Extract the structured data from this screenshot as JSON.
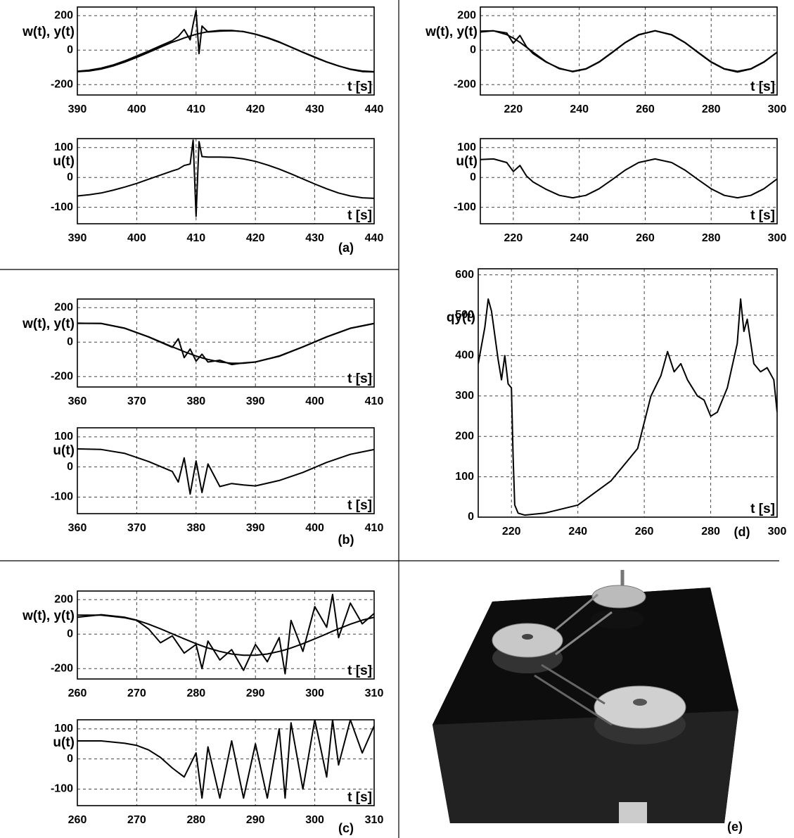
{
  "chart_data": [
    {
      "type": "line",
      "ylabel": "w(t), y(t)",
      "xlabel": "t [s]",
      "grid": true,
      "x": [
        390,
        392,
        394,
        396,
        398,
        400,
        402,
        404,
        406,
        407,
        408,
        409,
        409.5,
        410,
        410.5,
        411,
        412,
        414,
        416,
        418,
        420,
        422,
        424,
        426,
        428,
        430,
        432,
        434,
        436,
        438,
        440
      ],
      "series": [
        {
          "color": "#000000",
          "values": [
            -125,
            -121,
            -110,
            -92,
            -69,
            -42,
            -13,
            17,
            46,
            58,
            71,
            82,
            87,
            92,
            96,
            100,
            107,
            114,
            114,
            107,
            92,
            71,
            46,
            17,
            -13,
            -42,
            -69,
            -92,
            -110,
            -121,
            -125
          ]
        },
        {
          "color": "#000000",
          "values": [
            -122,
            -116,
            -104,
            -86,
            -62,
            -34,
            -5,
            25,
            55,
            80,
            120,
            60,
            150,
            230,
            -20,
            140,
            105,
            110,
            112,
            108,
            93,
            73,
            48,
            18,
            -12,
            -40,
            -68,
            -91,
            -112,
            -124,
            -126
          ]
        }
      ],
      "xlim": [
        390,
        440
      ],
      "xticks": [
        390,
        400,
        410,
        420,
        430,
        440
      ],
      "ylim": [
        -260,
        250
      ],
      "yticks": [
        -200,
        0,
        200
      ]
    },
    {
      "type": "line",
      "ylabel": "u(t)",
      "xlabel": "t [s]",
      "grid": true,
      "panel_label": "(a)",
      "x": [
        390,
        392,
        394,
        396,
        398,
        400,
        402,
        404,
        406,
        407,
        408,
        409,
        409.5,
        410,
        410.5,
        411,
        412,
        414,
        416,
        418,
        420,
        422,
        424,
        426,
        428,
        430,
        432,
        434,
        436,
        438,
        440
      ],
      "series": [
        {
          "color": "#000000",
          "values": [
            -62,
            -58,
            -52,
            -43,
            -32,
            -20,
            -6,
            8,
            22,
            28,
            40,
            45,
            125,
            -130,
            120,
            70,
            68,
            68,
            67,
            62,
            54,
            42,
            28,
            12,
            -5,
            -22,
            -38,
            -52,
            -62,
            -68,
            -70
          ]
        }
      ],
      "xlim": [
        390,
        440
      ],
      "xticks": [
        390,
        400,
        410,
        420,
        430,
        440
      ],
      "ylim": [
        -155,
        130
      ],
      "yticks": [
        -100,
        0,
        100
      ]
    },
    {
      "type": "line",
      "ylabel": "w(t), y(t)",
      "xlabel": "t [s]",
      "grid": true,
      "x": [
        210,
        214,
        218,
        220,
        222,
        224,
        226,
        230,
        234,
        238,
        242,
        246,
        250,
        254,
        258,
        263,
        268,
        272,
        276,
        280,
        284,
        288,
        292,
        296,
        300
      ],
      "series": [
        {
          "color": "#000000",
          "values": [
            105,
            112,
            90,
            70,
            45,
            17,
            -12,
            -68,
            -108,
            -123,
            -108,
            -68,
            -12,
            45,
            90,
            113,
            90,
            45,
            -12,
            -68,
            -108,
            -123,
            -108,
            -68,
            -12
          ]
        },
        {
          "color": "#000000",
          "values": [
            110,
            112,
            100,
            40,
            85,
            20,
            -20,
            -70,
            -105,
            -125,
            -110,
            -70,
            -14,
            44,
            88,
            112,
            88,
            44,
            -14,
            -70,
            -110,
            -127,
            -110,
            -70,
            -12
          ]
        }
      ],
      "xlim": [
        210,
        300
      ],
      "xticks": [
        220,
        240,
        260,
        280,
        300
      ],
      "ylim": [
        -260,
        250
      ],
      "yticks": [
        -200,
        0,
        200
      ]
    },
    {
      "type": "line",
      "ylabel": "u(t)",
      "xlabel": "t [s]",
      "grid": true,
      "x": [
        210,
        214,
        218,
        220,
        222,
        224,
        226,
        230,
        234,
        238,
        242,
        246,
        250,
        254,
        258,
        263,
        268,
        272,
        276,
        280,
        284,
        288,
        292,
        296,
        300
      ],
      "series": [
        {
          "color": "#000000",
          "values": [
            60,
            62,
            50,
            20,
            40,
            5,
            -15,
            -40,
            -60,
            -68,
            -60,
            -38,
            -7,
            25,
            50,
            62,
            50,
            25,
            -7,
            -38,
            -60,
            -68,
            -60,
            -38,
            -5
          ]
        }
      ],
      "xlim": [
        210,
        300
      ],
      "xticks": [
        220,
        240,
        260,
        280,
        300
      ],
      "ylim": [
        -155,
        130
      ],
      "yticks": [
        -100,
        0,
        100
      ]
    },
    {
      "type": "line",
      "ylabel": "w(t), y(t)",
      "xlabel": "t [s]",
      "grid": true,
      "x": [
        360,
        364,
        368,
        372,
        376,
        377,
        378,
        379,
        380,
        381,
        382,
        384,
        386,
        388,
        390,
        394,
        398,
        402,
        406,
        410
      ],
      "series": [
        {
          "color": "#000000",
          "values": [
            109,
            109,
            81,
            31,
            -27,
            -41,
            -55,
            -68,
            -80,
            -91,
            -100,
            -115,
            -122,
            -122,
            -115,
            -80,
            -27,
            31,
            81,
            109
          ]
        },
        {
          "color": "#000000",
          "values": [
            110,
            108,
            80,
            30,
            -30,
            20,
            -90,
            -40,
            -110,
            -70,
            -115,
            -105,
            -130,
            -120,
            -115,
            -82,
            -28,
            30,
            80,
            108
          ]
        }
      ],
      "xlim": [
        360,
        410
      ],
      "xticks": [
        360,
        370,
        380,
        390,
        400,
        410
      ],
      "ylim": [
        -260,
        250
      ],
      "yticks": [
        -200,
        0,
        200
      ]
    },
    {
      "type": "line",
      "ylabel": "u(t)",
      "xlabel": "t [s]",
      "grid": true,
      "panel_label": "(b)",
      "x": [
        360,
        364,
        368,
        372,
        376,
        377,
        378,
        379,
        380,
        381,
        382,
        384,
        386,
        388,
        390,
        394,
        398,
        402,
        406,
        410
      ],
      "series": [
        {
          "color": "#000000",
          "values": [
            60,
            58,
            45,
            18,
            -15,
            -50,
            30,
            -90,
            20,
            -85,
            10,
            -65,
            -55,
            -60,
            -63,
            -45,
            -18,
            15,
            42,
            58
          ]
        }
      ],
      "xlim": [
        360,
        410
      ],
      "xticks": [
        360,
        370,
        380,
        390,
        400,
        410
      ],
      "ylim": [
        -155,
        130
      ],
      "yticks": [
        -100,
        0,
        100
      ]
    },
    {
      "type": "line",
      "ylabel": "qy(t)",
      "xlabel": "t [s]",
      "grid": true,
      "panel_label": "(d)",
      "x": [
        210,
        212,
        213,
        214,
        216,
        217,
        218,
        219,
        220,
        220.5,
        221,
        222,
        224,
        230,
        240,
        250,
        258,
        262,
        265,
        267,
        269,
        271,
        273,
        276,
        278,
        280,
        282,
        285,
        288,
        289,
        290,
        291,
        293,
        295,
        297,
        299,
        300
      ],
      "series": [
        {
          "color": "#000000",
          "values": [
            380,
            470,
            540,
            510,
            390,
            340,
            400,
            330,
            320,
            150,
            30,
            10,
            5,
            10,
            30,
            90,
            170,
            300,
            350,
            410,
            360,
            380,
            340,
            300,
            290,
            250,
            260,
            320,
            430,
            540,
            460,
            490,
            380,
            360,
            370,
            340,
            260
          ]
        }
      ],
      "xlim": [
        210,
        300
      ],
      "xticks": [
        220,
        240,
        260,
        280,
        300
      ],
      "ylim": [
        0,
        615
      ],
      "yticks": [
        0,
        100,
        200,
        300,
        400,
        500,
        600
      ]
    },
    {
      "type": "line",
      "ylabel": "w(t), y(t)",
      "xlabel": "t [s]",
      "grid": true,
      "x": [
        260,
        264,
        268,
        270,
        272,
        274,
        276,
        278,
        280,
        281,
        282,
        284,
        286,
        288,
        290,
        292,
        294,
        295,
        296,
        298,
        300,
        302,
        303,
        304,
        306,
        308,
        310
      ],
      "series": [
        {
          "color": "#000000",
          "values": [
            98,
            113,
            98,
            81,
            58,
            31,
            2,
            -27,
            -55,
            -68,
            -80,
            -100,
            -115,
            -122,
            -122,
            -115,
            -100,
            -91,
            -80,
            -55,
            -27,
            2,
            17,
            31,
            58,
            81,
            98
          ]
        },
        {
          "color": "#000000",
          "values": [
            110,
            110,
            95,
            80,
            30,
            -50,
            -10,
            -110,
            -60,
            -200,
            -40,
            -150,
            -90,
            -210,
            -60,
            -160,
            -20,
            -230,
            80,
            -100,
            160,
            40,
            230,
            -20,
            180,
            60,
            120
          ]
        }
      ],
      "xlim": [
        260,
        310
      ],
      "xticks": [
        260,
        270,
        280,
        290,
        300,
        310
      ],
      "ylim": [
        -260,
        250
      ],
      "yticks": [
        -200,
        0,
        200
      ]
    },
    {
      "type": "line",
      "ylabel": "u(t)",
      "xlabel": "t [s]",
      "grid": true,
      "panel_label": "(c)",
      "x": [
        260,
        264,
        268,
        270,
        272,
        274,
        276,
        278,
        280,
        281,
        282,
        284,
        286,
        288,
        290,
        292,
        294,
        295,
        296,
        298,
        300,
        302,
        303,
        304,
        306,
        308,
        310
      ],
      "series": [
        {
          "color": "#000000",
          "values": [
            60,
            60,
            52,
            45,
            30,
            5,
            -30,
            -60,
            20,
            -130,
            40,
            -130,
            60,
            -130,
            50,
            -130,
            100,
            -130,
            120,
            -100,
            130,
            -60,
            130,
            -20,
            130,
            20,
            110
          ]
        }
      ],
      "xlim": [
        260,
        310
      ],
      "xticks": [
        260,
        270,
        280,
        290,
        300,
        310
      ],
      "ylim": [
        -155,
        130
      ],
      "yticks": [
        -100,
        0,
        100
      ]
    }
  ],
  "photo": {
    "label": "(e)"
  }
}
